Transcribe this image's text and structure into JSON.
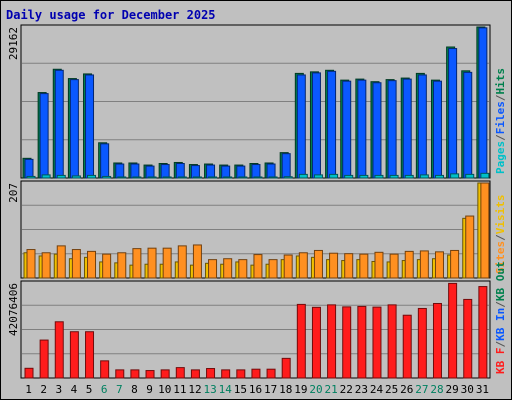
{
  "page_title": "Daily usage for December 2025",
  "colors": {
    "hits": "#00804d",
    "files": "#0a58ff",
    "pages": "#00c0c8",
    "visits": "#f0c000",
    "sites": "#ff9020",
    "kbytes": "#ff1c1c",
    "weekend_label": "#008060",
    "weekday_label": "#000000",
    "separator": "#555555"
  },
  "chart_data": [
    {
      "name": "hits-files-pages",
      "type": "bar",
      "max_label": "29162",
      "ylim": [
        0,
        29162
      ],
      "grid": true,
      "legend": [
        {
          "label": "Pages",
          "color_key": "pages"
        },
        {
          "label": "/",
          "color_key": "separator"
        },
        {
          "label": "Files",
          "color_key": "files"
        },
        {
          "label": "/",
          "color_key": "separator"
        },
        {
          "label": "Hits",
          "color_key": "hits"
        }
      ],
      "series": [
        {
          "key": "hits",
          "values": [
            3800,
            16500,
            21000,
            19200,
            20100,
            6800,
            2900,
            2900,
            2500,
            2800,
            3000,
            2600,
            2700,
            2500,
            2500,
            2800,
            2900,
            4900,
            20200,
            20500,
            20800,
            18900,
            19100,
            18600,
            19000,
            19300,
            20200,
            18900,
            25300,
            20700,
            29162
          ]
        },
        {
          "key": "files",
          "values": [
            3600,
            16300,
            20800,
            19000,
            19900,
            6600,
            2700,
            2700,
            2300,
            2600,
            2800,
            2400,
            2500,
            2300,
            2300,
            2600,
            2700,
            4700,
            19900,
            20300,
            20600,
            18700,
            18900,
            18400,
            18800,
            19100,
            19900,
            18700,
            25000,
            20400,
            29000
          ]
        },
        {
          "key": "pages",
          "values": [
            300,
            600,
            500,
            400,
            500,
            300,
            200,
            200,
            200,
            200,
            200,
            200,
            200,
            200,
            200,
            200,
            200,
            250,
            700,
            600,
            700,
            500,
            500,
            500,
            500,
            500,
            600,
            500,
            800,
            700,
            900
          ]
        }
      ]
    },
    {
      "name": "visits-sites",
      "type": "bar",
      "max_label": "207",
      "ylim": [
        0,
        207
      ],
      "grid": true,
      "legend": [
        {
          "label": "Sites",
          "color_key": "sites"
        },
        {
          "label": "/",
          "color_key": "separator"
        },
        {
          "label": "Visits",
          "color_key": "visits"
        }
      ],
      "series": [
        {
          "key": "visits",
          "values": [
            55,
            48,
            52,
            42,
            45,
            35,
            33,
            28,
            30,
            30,
            35,
            28,
            32,
            30,
            35,
            28,
            30,
            40,
            48,
            45,
            40,
            38,
            40,
            36,
            35,
            38,
            40,
            42,
            50,
            130,
            207
          ]
        },
        {
          "key": "sites",
          "values": [
            62,
            55,
            70,
            62,
            58,
            52,
            55,
            64,
            65,
            65,
            70,
            72,
            40,
            42,
            40,
            51,
            40,
            50,
            55,
            60,
            54,
            53,
            52,
            56,
            52,
            58,
            59,
            57,
            60,
            135,
            207
          ]
        }
      ]
    },
    {
      "name": "kbytes",
      "type": "bar",
      "max_label": "42076406",
      "ylim": [
        0,
        42076406
      ],
      "grid": true,
      "legend": [
        {
          "label": "KB F",
          "color_key": "kbytes"
        },
        {
          "label": "/",
          "color_key": "separator"
        },
        {
          "label": "KB In",
          "color_key": "files"
        },
        {
          "label": "/",
          "color_key": "separator"
        },
        {
          "label": "KB Out",
          "color_key": "hits"
        }
      ],
      "series": [
        {
          "key": "kbytes",
          "values": [
            4300000,
            16800000,
            24900000,
            20500000,
            20500000,
            7600000,
            3600000,
            3600000,
            3300000,
            3600000,
            4600000,
            3600000,
            4200000,
            3600000,
            3600000,
            3900000,
            3900000,
            8700000,
            32600000,
            31300000,
            32400000,
            31500000,
            31700000,
            31400000,
            32400000,
            27800000,
            30800000,
            33000000,
            41900000,
            34800000,
            40500000
          ]
        }
      ]
    }
  ],
  "days": [
    {
      "label": "1",
      "weekend": false
    },
    {
      "label": "2",
      "weekend": false
    },
    {
      "label": "3",
      "weekend": false
    },
    {
      "label": "4",
      "weekend": false
    },
    {
      "label": "5",
      "weekend": false
    },
    {
      "label": "6",
      "weekend": true
    },
    {
      "label": "7",
      "weekend": true
    },
    {
      "label": "8",
      "weekend": false
    },
    {
      "label": "9",
      "weekend": false
    },
    {
      "label": "10",
      "weekend": false
    },
    {
      "label": "11",
      "weekend": false
    },
    {
      "label": "12",
      "weekend": false
    },
    {
      "label": "13",
      "weekend": true
    },
    {
      "label": "14",
      "weekend": true
    },
    {
      "label": "15",
      "weekend": false
    },
    {
      "label": "16",
      "weekend": false
    },
    {
      "label": "17",
      "weekend": false
    },
    {
      "label": "18",
      "weekend": false
    },
    {
      "label": "19",
      "weekend": false
    },
    {
      "label": "20",
      "weekend": true
    },
    {
      "label": "21",
      "weekend": true
    },
    {
      "label": "22",
      "weekend": false
    },
    {
      "label": "23",
      "weekend": false
    },
    {
      "label": "24",
      "weekend": false
    },
    {
      "label": "25",
      "weekend": false
    },
    {
      "label": "26",
      "weekend": false
    },
    {
      "label": "27",
      "weekend": true
    },
    {
      "label": "28",
      "weekend": true
    },
    {
      "label": "29",
      "weekend": false
    },
    {
      "label": "30",
      "weekend": false
    },
    {
      "label": "31",
      "weekend": false
    }
  ]
}
